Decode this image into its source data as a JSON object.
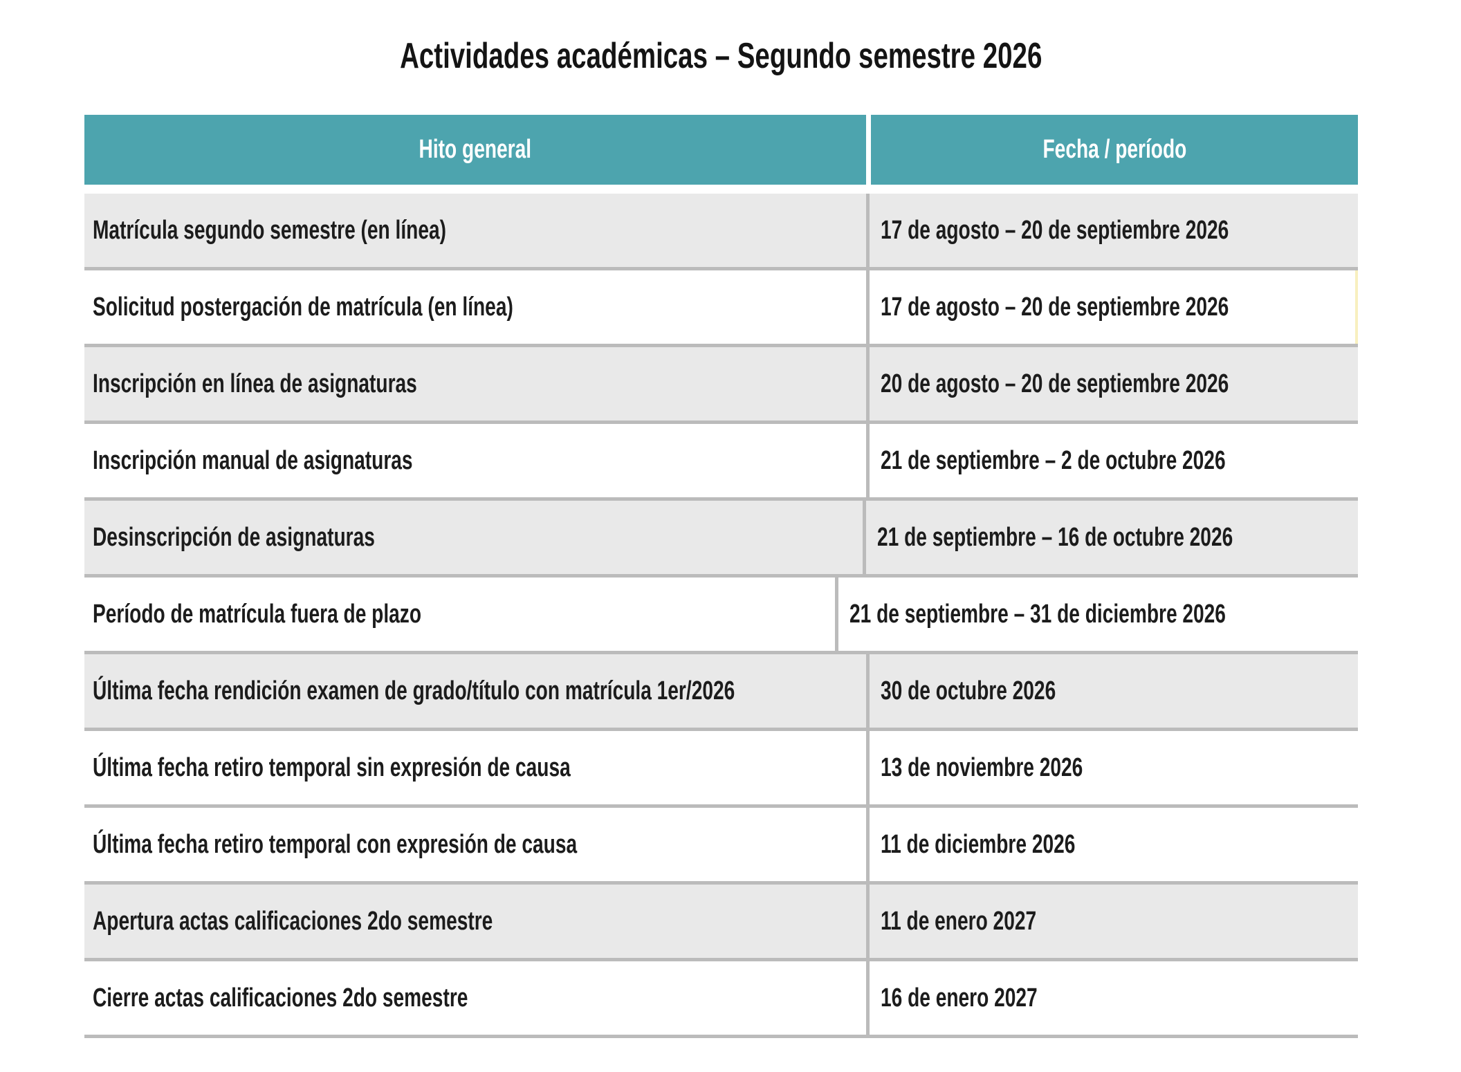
{
  "title": "Actividades académicas – Segundo semestre 2026",
  "table": {
    "columns": [
      {
        "label": "Hito general"
      },
      {
        "label": "Fecha / período"
      }
    ],
    "rows": [
      {
        "hito": "Matrícula segundo semestre (en línea)",
        "fecha": "17 de agosto – 20 de septiembre 2026",
        "shaded": true,
        "highlighted": false
      },
      {
        "hito": "Solicitud postergación de matrícula (en línea)",
        "fecha": "17 de agosto – 20 de septiembre 2026",
        "shaded": false,
        "highlighted": true
      },
      {
        "hito": "Inscripción en línea de asignaturas",
        "fecha": "20 de agosto – 20 de septiembre 2026",
        "shaded": true,
        "highlighted": false
      },
      {
        "hito": "Inscripción manual de asignaturas",
        "fecha": "21 de septiembre – 2 de octubre 2026",
        "shaded": false,
        "highlighted": false
      },
      {
        "hito": "Desinscripción de asignaturas",
        "fecha": "21 de septiembre – 16 de octubre 2026",
        "shaded": true,
        "highlighted": false
      },
      {
        "hito": "Período de matrícula fuera de plazo",
        "fecha": "21 de septiembre – 31 de diciembre 2026",
        "shaded": false,
        "highlighted": false
      },
      {
        "hito": "Última fecha rendición examen de grado/título con matrícula 1er/2026",
        "fecha": "30 de octubre 2026",
        "shaded": true,
        "highlighted": false
      },
      {
        "hito": "Última fecha retiro temporal sin expresión de causa",
        "fecha": "13 de noviembre 2026",
        "shaded": false,
        "highlighted": false
      },
      {
        "hito": "Última fecha retiro temporal con expresión de causa",
        "fecha": "11 de diciembre 2026",
        "shaded": false,
        "highlighted": false
      },
      {
        "hito": "Apertura actas calificaciones 2do semestre",
        "fecha": "11 de enero 2027",
        "shaded": true,
        "highlighted": false
      },
      {
        "hito": "Cierre actas calificaciones 2do semestre",
        "fecha": "16 de enero 2027",
        "shaded": false,
        "highlighted": false
      }
    ]
  },
  "colors": {
    "header_bg": "#4da4ae",
    "header_text": "#ffffff",
    "row_shaded": "#e9e9e9",
    "row_plain": "#ffffff",
    "grid": "#bbbbbb",
    "text": "#1c1c1c",
    "highlight_border": "#f8f0bf"
  }
}
